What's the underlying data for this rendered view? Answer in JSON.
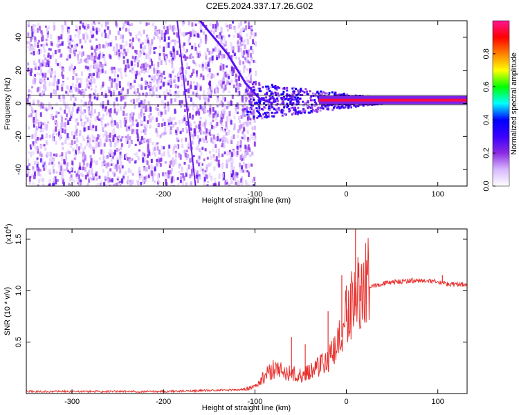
{
  "title": "C2E5.2024.337.17.26.G02",
  "chart_data": [
    {
      "type": "heatmap",
      "xlabel": "Height of straight line (km)",
      "ylabel": "Frequency (Hz)",
      "xlim": [
        -350,
        132
      ],
      "ylim": [
        -50,
        50
      ],
      "x_ticks": [
        -300,
        -200,
        -100,
        0,
        100
      ],
      "y_ticks": [
        -40,
        -20,
        0,
        20,
        40
      ],
      "colorbar": {
        "label": "Normalized spectral amplitude",
        "range": [
          0,
          1
        ],
        "ticks": [
          "0.0",
          "0.2",
          "0.4",
          "0.6",
          "0.8"
        ],
        "colors": [
          "#ffffff",
          "#d8b8ff",
          "#8a2be2",
          "#3b00ff",
          "#0000ff",
          "#00ffff",
          "#00ff00",
          "#ffff00",
          "#ff8000",
          "#ff0000",
          "#ff1493"
        ]
      },
      "features": {
        "noise_region_x": [
          -350,
          -100
        ],
        "noise_amplitude": 0.12,
        "descending_trace": [
          [
            -160,
            50
          ],
          [
            -130,
            30
          ],
          [
            -110,
            12
          ],
          [
            -95,
            3
          ],
          [
            -80,
            0
          ]
        ],
        "steep_trace": [
          [
            -185,
            50
          ],
          [
            -175,
            0
          ],
          [
            -165,
            -50
          ]
        ],
        "carrier_frequency": 2,
        "carrier_x": [
          -30,
          132
        ],
        "carrier_amplitude": 0.95
      }
    },
    {
      "type": "line",
      "xlabel": "Height of straight line (km)",
      "ylabel": "SNR (10 * v/v)",
      "y_multiplier": "(x10",
      "y_exponent": "4",
      "xlim": [
        -350,
        132
      ],
      "ylim": [
        0,
        1.6
      ],
      "x_ticks": [
        -300,
        -200,
        -100,
        0,
        100
      ],
      "y_ticks": [
        "0.5",
        "1.0",
        "1.5"
      ],
      "color": "#e8312e",
      "series": [
        {
          "name": "",
          "x": [
            -350,
            -300,
            -250,
            -200,
            -150,
            -110,
            -100,
            -90,
            -80,
            -70,
            -60,
            -50,
            -40,
            -30,
            -20,
            -10,
            -5,
            0,
            5,
            10,
            15,
            20,
            25,
            30,
            40,
            50,
            60,
            70,
            80,
            90,
            100,
            110,
            120,
            132
          ],
          "y": [
            0.02,
            0.02,
            0.02,
            0.02,
            0.03,
            0.04,
            0.06,
            0.15,
            0.22,
            0.2,
            0.18,
            0.16,
            0.2,
            0.25,
            0.3,
            0.4,
            0.55,
            0.7,
            0.8,
            0.85,
            0.9,
            0.95,
            1.02,
            1.05,
            1.07,
            1.08,
            1.09,
            1.1,
            1.1,
            1.09,
            1.08,
            1.07,
            1.06,
            1.06
          ]
        }
      ],
      "spikes": [
        [
          -60,
          0.55
        ],
        [
          -45,
          0.48
        ],
        [
          -20,
          0.8
        ],
        [
          -5,
          1.15
        ],
        [
          0,
          1.05
        ],
        [
          10,
          1.62
        ],
        [
          15,
          1.05
        ],
        [
          105,
          1.15
        ]
      ]
    }
  ]
}
